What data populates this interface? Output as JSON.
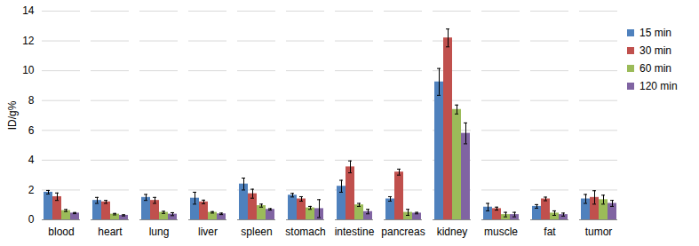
{
  "chart_data": {
    "type": "bar",
    "y_label": "ID/g%",
    "categories": [
      "blood",
      "heart",
      "lung",
      "liver",
      "spleen",
      "stomach",
      "intestine",
      "pancreas",
      "kidney",
      "muscle",
      "fat",
      "tumor"
    ],
    "series": [
      {
        "name": "15 min",
        "color": "#4F81BD",
        "values": [
          1.85,
          1.3,
          1.5,
          1.45,
          2.4,
          1.65,
          2.25,
          1.4,
          9.25,
          0.85,
          0.9,
          1.4
        ],
        "errors": [
          0.12,
          0.2,
          0.2,
          0.4,
          0.4,
          0.12,
          0.4,
          0.15,
          0.9,
          0.25,
          0.12,
          0.3
        ]
      },
      {
        "name": "30 min",
        "color": "#C0504D",
        "values": [
          1.55,
          1.2,
          1.3,
          1.2,
          1.75,
          1.4,
          3.55,
          3.2,
          12.2,
          0.75,
          1.4,
          1.5
        ],
        "errors": [
          0.25,
          0.1,
          0.2,
          0.12,
          0.3,
          0.15,
          0.4,
          0.2,
          0.6,
          0.1,
          0.12,
          0.45
        ]
      },
      {
        "name": "60 min",
        "color": "#9BBB59",
        "values": [
          0.62,
          0.38,
          0.5,
          0.5,
          0.95,
          0.8,
          1.0,
          0.5,
          7.4,
          0.35,
          0.45,
          1.35
        ],
        "errors": [
          0.07,
          0.05,
          0.07,
          0.05,
          0.1,
          0.1,
          0.1,
          0.2,
          0.3,
          0.15,
          0.15,
          0.3
        ]
      },
      {
        "name": "120 min",
        "color": "#8064A2",
        "values": [
          0.45,
          0.3,
          0.38,
          0.4,
          0.7,
          0.75,
          0.55,
          0.45,
          5.8,
          0.35,
          0.35,
          1.1
        ],
        "errors": [
          0.04,
          0.04,
          0.1,
          0.05,
          0.05,
          0.6,
          0.15,
          0.05,
          0.7,
          0.15,
          0.1,
          0.2
        ]
      }
    ],
    "ylim": [
      0,
      14
    ],
    "yticks": [
      0,
      2,
      4,
      6,
      8,
      10,
      12,
      14
    ],
    "grid": true,
    "legend": "right"
  }
}
